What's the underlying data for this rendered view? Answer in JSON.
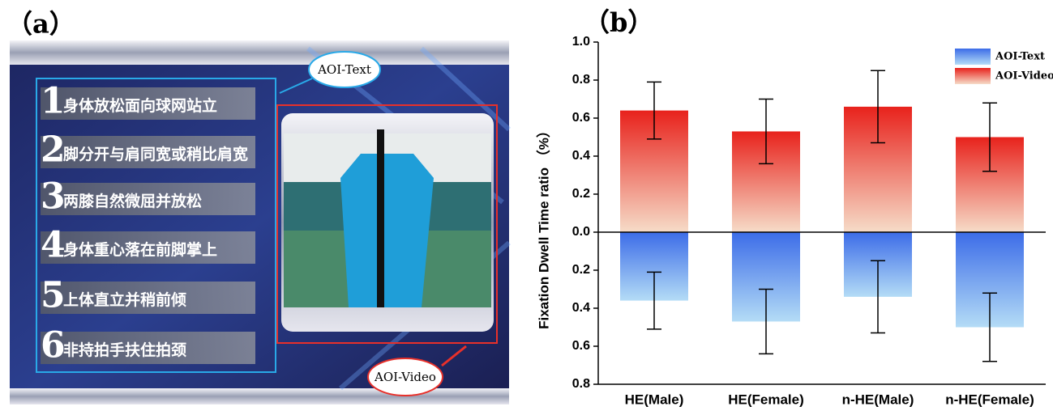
{
  "panel_a": {
    "label": "（a）",
    "items": [
      {
        "number": "1",
        "text": "身体放松面向球网站立"
      },
      {
        "number": "2",
        "text": "脚分开与肩同宽或稍比肩宽"
      },
      {
        "number": "3",
        "text": "两膝自然微屈并放松"
      },
      {
        "number": "4",
        "text": "身体重心落在前脚掌上"
      },
      {
        "number": "5",
        "text": "上体直立并稍前倾"
      },
      {
        "number": "6",
        "text": "非持拍手扶住拍颈"
      }
    ],
    "aoi_text": "AOI-Text",
    "aoi_video": "AOI-Video"
  },
  "chart_data": {
    "type": "bar",
    "panel_label": "（b）",
    "y_label": "Fixation Dwell Time ratio （%）",
    "categories": [
      "HE(Male)",
      "HE(Female)",
      "n-HE(Male)",
      "n-HE(Female)"
    ],
    "series": [
      {
        "name": "AOI-Text",
        "color": "#3c6ce8",
        "values": [
          -0.36,
          -0.47,
          -0.34,
          -0.5
        ],
        "errors": [
          0.15,
          0.17,
          0.19,
          0.18
        ]
      },
      {
        "name": "AOI-Video",
        "color": "#e8221c",
        "values": [
          0.64,
          0.53,
          0.66,
          0.5
        ],
        "errors": [
          0.15,
          0.17,
          0.19,
          0.18
        ]
      }
    ],
    "ylim": [
      -0.8,
      1.0
    ],
    "yticks": [
      {
        "value": -0.8,
        "label": "0.8"
      },
      {
        "value": -0.6,
        "label": "0.6"
      },
      {
        "value": -0.4,
        "label": "0.4"
      },
      {
        "value": -0.2,
        "label": "0.2"
      },
      {
        "value": 0,
        "label": "0.0"
      },
      0.2,
      0.4,
      0.6,
      0.8,
      {
        "value": 1,
        "label": "1.0"
      }
    ],
    "legend": "upper right"
  }
}
